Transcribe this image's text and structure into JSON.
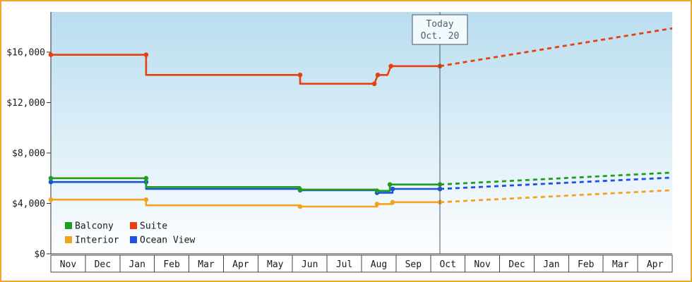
{
  "frame": {
    "border_color": "#f2a42c",
    "background": "#ffffff"
  },
  "chart_data": {
    "type": "line",
    "title": "",
    "x_categories": [
      "Nov",
      "Dec",
      "Jan",
      "Feb",
      "Mar",
      "Apr",
      "May",
      "Jun",
      "Jul",
      "Aug",
      "Sep",
      "Oct",
      "Nov",
      "Dec",
      "Jan",
      "Feb",
      "Mar",
      "Apr"
    ],
    "xlim": [
      0,
      18
    ],
    "ylim": [
      0,
      19200
    ],
    "y_ticks": [
      {
        "value": 0,
        "label": "$0"
      },
      {
        "value": 4000,
        "label": "$4,000"
      },
      {
        "value": 8000,
        "label": "$8,000"
      },
      {
        "value": 12000,
        "label": "$12,000"
      },
      {
        "value": 16000,
        "label": "$16,000"
      }
    ],
    "grid": "off",
    "plot_background": {
      "top": "#b9ddef",
      "bottom": "#fdfeff"
    },
    "axis_color": "#333333",
    "today_marker": {
      "line1": "Today",
      "line2": "Oct. 20",
      "x": 11.27
    },
    "series": [
      {
        "name": "Interior",
        "color": "#f2a41f",
        "solid": [
          [
            0,
            4300
          ],
          [
            2.76,
            4300
          ],
          [
            2.76,
            3850
          ],
          [
            7.22,
            3850
          ],
          [
            7.22,
            3750
          ],
          [
            9.45,
            3750
          ],
          [
            9.45,
            3950
          ],
          [
            9.9,
            3950
          ],
          [
            9.9,
            4100
          ],
          [
            11.27,
            4100
          ]
        ],
        "projected": [
          [
            11.27,
            4100
          ],
          [
            18,
            5050
          ]
        ],
        "markers": [
          [
            0,
            4300
          ],
          [
            2.76,
            4300
          ],
          [
            7.22,
            3750
          ],
          [
            9.45,
            3950
          ],
          [
            9.9,
            4100
          ],
          [
            11.27,
            4100
          ]
        ]
      },
      {
        "name": "Ocean View",
        "color": "#1d52e0",
        "solid": [
          [
            0,
            5700
          ],
          [
            2.76,
            5700
          ],
          [
            2.76,
            5150
          ],
          [
            7.22,
            5150
          ],
          [
            7.22,
            5050
          ],
          [
            9.45,
            5050
          ],
          [
            9.45,
            4850
          ],
          [
            9.9,
            4850
          ],
          [
            9.9,
            5150
          ],
          [
            11.27,
            5150
          ]
        ],
        "projected": [
          [
            11.27,
            5150
          ],
          [
            18,
            6050
          ]
        ],
        "markers": [
          [
            0,
            5700
          ],
          [
            2.76,
            5700
          ],
          [
            7.22,
            5050
          ],
          [
            9.45,
            4850
          ],
          [
            9.9,
            5150
          ],
          [
            11.27,
            5150
          ]
        ]
      },
      {
        "name": "Balcony",
        "color": "#1f9e1f",
        "solid": [
          [
            0,
            6000
          ],
          [
            2.76,
            6000
          ],
          [
            2.76,
            5300
          ],
          [
            7.22,
            5300
          ],
          [
            7.22,
            5100
          ],
          [
            9.45,
            5100
          ],
          [
            9.45,
            5000
          ],
          [
            9.82,
            5000
          ],
          [
            9.82,
            5500
          ],
          [
            11.27,
            5500
          ]
        ],
        "projected": [
          [
            11.27,
            5500
          ],
          [
            18,
            6450
          ]
        ],
        "markers": [
          [
            0,
            6000
          ],
          [
            2.76,
            6000
          ],
          [
            7.22,
            5100
          ],
          [
            9.45,
            5000
          ],
          [
            9.82,
            5500
          ],
          [
            11.27,
            5500
          ]
        ]
      },
      {
        "name": "Suite",
        "color": "#e8400d",
        "solid": [
          [
            0,
            15800
          ],
          [
            2.76,
            15800
          ],
          [
            2.76,
            14200
          ],
          [
            7.22,
            14200
          ],
          [
            7.22,
            13500
          ],
          [
            9.37,
            13500
          ],
          [
            9.47,
            14200
          ],
          [
            9.75,
            14200
          ],
          [
            9.85,
            14900
          ],
          [
            11.27,
            14900
          ]
        ],
        "projected": [
          [
            11.27,
            14900
          ],
          [
            18,
            17900
          ]
        ],
        "markers": [
          [
            0,
            15800
          ],
          [
            2.76,
            15800
          ],
          [
            7.22,
            14200
          ],
          [
            9.37,
            13500
          ],
          [
            9.47,
            14200
          ],
          [
            9.85,
            14900
          ],
          [
            11.27,
            14900
          ]
        ]
      }
    ],
    "legend": {
      "position": "bottom-left",
      "entries": [
        {
          "label": "Balcony",
          "color": "#1f9e1f"
        },
        {
          "label": "Suite",
          "color": "#e8400d"
        },
        {
          "label": "Interior",
          "color": "#f2a41f"
        },
        {
          "label": "Ocean View",
          "color": "#1d52e0"
        }
      ]
    }
  }
}
